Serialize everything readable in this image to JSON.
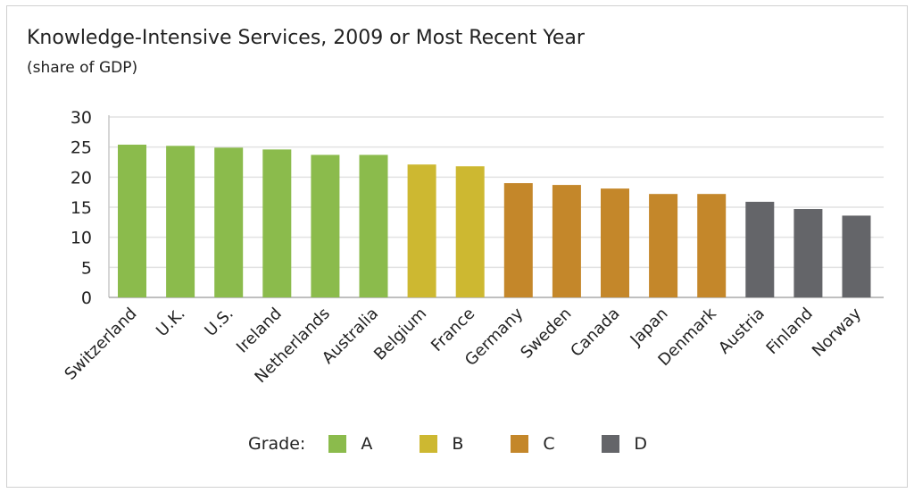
{
  "chart_data": {
    "type": "bar",
    "title": "Knowledge-Intensive Services, 2009 or Most Recent Year",
    "subtitle": "(share of GDP)",
    "xlabel": "",
    "ylabel": "",
    "ylim": [
      0,
      30
    ],
    "yticks": [
      0,
      5,
      10,
      15,
      20,
      25,
      30
    ],
    "grid": true,
    "categories": [
      "Switzerland",
      "U.K.",
      "U.S.",
      "Ireland",
      "Netherlands",
      "Australia",
      "Belgium",
      "France",
      "Germany",
      "Sweden",
      "Canada",
      "Japan",
      "Denmark",
      "Austria",
      "Finland",
      "Norway"
    ],
    "values": [
      25.4,
      25.2,
      24.9,
      24.6,
      23.7,
      23.7,
      22.1,
      21.8,
      19.0,
      18.7,
      18.1,
      17.2,
      17.2,
      15.9,
      14.7,
      13.6
    ],
    "grades": [
      "A",
      "A",
      "A",
      "A",
      "A",
      "A",
      "B",
      "B",
      "C",
      "C",
      "C",
      "C",
      "C",
      "D",
      "D",
      "D"
    ],
    "legend": {
      "title": "Grade:",
      "placement": "bottom",
      "entries": [
        {
          "label": "A",
          "color": "#8bbb4c"
        },
        {
          "label": "B",
          "color": "#cdb831"
        },
        {
          "label": "C",
          "color": "#c4872a"
        },
        {
          "label": "D",
          "color": "#646569"
        }
      ]
    }
  }
}
